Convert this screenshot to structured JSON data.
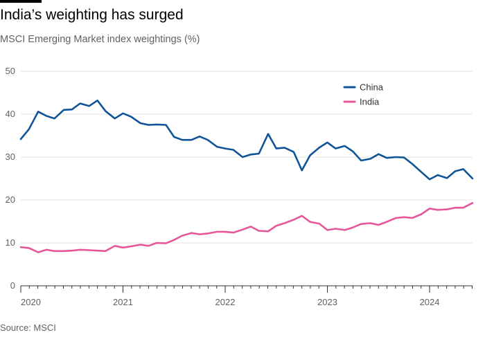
{
  "header": {
    "title": "India’s weighting has surged",
    "subtitle": "MSCI Emerging Market index weightings (%)"
  },
  "footer": {
    "source": "Source: MSCI"
  },
  "colors": {
    "china": "#0f5499",
    "india": "#e5569a",
    "grid": "#e6e3df",
    "axis": "#33302e"
  },
  "chart_data": {
    "type": "line",
    "title": "India’s weighting has surged",
    "subtitle": "MSCI Emerging Market index weightings (%)",
    "xlabel": "",
    "ylabel": "",
    "ylim": [
      0,
      50
    ],
    "xlim": [
      2020.0,
      2024.42
    ],
    "y_ticks": [
      0,
      10,
      20,
      30,
      40,
      50
    ],
    "x_ticks": [
      {
        "value": 2020,
        "label": "2020"
      },
      {
        "value": 2021,
        "label": "2021"
      },
      {
        "value": 2022,
        "label": "2022"
      },
      {
        "value": 2023,
        "label": "2023"
      },
      {
        "value": 2024,
        "label": "2024"
      }
    ],
    "grid": true,
    "legend": "top-right",
    "series": [
      {
        "name": "China",
        "color": "#0f5499",
        "points": [
          [
            2020.0,
            34.2
          ],
          [
            2020.08,
            36.5
          ],
          [
            2020.17,
            40.6
          ],
          [
            2020.25,
            39.6
          ],
          [
            2020.33,
            39.0
          ],
          [
            2020.42,
            41.0
          ],
          [
            2020.5,
            41.1
          ],
          [
            2020.58,
            42.5
          ],
          [
            2020.67,
            41.9
          ],
          [
            2020.75,
            43.2
          ],
          [
            2020.83,
            40.7
          ],
          [
            2020.92,
            39.0
          ],
          [
            2021.0,
            40.2
          ],
          [
            2021.08,
            39.4
          ],
          [
            2021.17,
            37.9
          ],
          [
            2021.25,
            37.5
          ],
          [
            2021.33,
            37.6
          ],
          [
            2021.42,
            37.5
          ],
          [
            2021.5,
            34.7
          ],
          [
            2021.58,
            34.0
          ],
          [
            2021.67,
            34.0
          ],
          [
            2021.75,
            34.8
          ],
          [
            2021.83,
            34.0
          ],
          [
            2021.92,
            32.4
          ],
          [
            2022.0,
            32.0
          ],
          [
            2022.08,
            31.7
          ],
          [
            2022.17,
            30.0
          ],
          [
            2022.25,
            30.6
          ],
          [
            2022.33,
            30.8
          ],
          [
            2022.42,
            35.4
          ],
          [
            2022.5,
            32.0
          ],
          [
            2022.58,
            32.2
          ],
          [
            2022.67,
            31.2
          ],
          [
            2022.75,
            26.9
          ],
          [
            2022.83,
            30.4
          ],
          [
            2022.92,
            32.2
          ],
          [
            2023.0,
            33.4
          ],
          [
            2023.08,
            32.0
          ],
          [
            2023.17,
            32.6
          ],
          [
            2023.25,
            31.3
          ],
          [
            2023.33,
            29.2
          ],
          [
            2023.42,
            29.6
          ],
          [
            2023.5,
            30.7
          ],
          [
            2023.58,
            29.8
          ],
          [
            2023.67,
            30.0
          ],
          [
            2023.75,
            29.9
          ],
          [
            2023.83,
            28.4
          ],
          [
            2023.92,
            26.5
          ],
          [
            2024.0,
            24.8
          ],
          [
            2024.08,
            25.8
          ],
          [
            2024.17,
            25.1
          ],
          [
            2024.25,
            26.7
          ],
          [
            2024.33,
            27.2
          ],
          [
            2024.42,
            25.0
          ]
        ]
      },
      {
        "name": "India",
        "color": "#e5569a",
        "points": [
          [
            2020.0,
            9.0
          ],
          [
            2020.08,
            8.8
          ],
          [
            2020.17,
            7.8
          ],
          [
            2020.25,
            8.4
          ],
          [
            2020.33,
            8.1
          ],
          [
            2020.42,
            8.1
          ],
          [
            2020.5,
            8.2
          ],
          [
            2020.58,
            8.4
          ],
          [
            2020.67,
            8.3
          ],
          [
            2020.75,
            8.2
          ],
          [
            2020.83,
            8.1
          ],
          [
            2020.92,
            9.3
          ],
          [
            2021.0,
            8.9
          ],
          [
            2021.08,
            9.2
          ],
          [
            2021.17,
            9.6
          ],
          [
            2021.25,
            9.3
          ],
          [
            2021.33,
            10.0
          ],
          [
            2021.42,
            9.9
          ],
          [
            2021.5,
            10.7
          ],
          [
            2021.58,
            11.7
          ],
          [
            2021.67,
            12.3
          ],
          [
            2021.75,
            12.0
          ],
          [
            2021.83,
            12.2
          ],
          [
            2021.92,
            12.6
          ],
          [
            2022.0,
            12.6
          ],
          [
            2022.08,
            12.4
          ],
          [
            2022.17,
            13.1
          ],
          [
            2022.25,
            13.8
          ],
          [
            2022.33,
            12.8
          ],
          [
            2022.42,
            12.7
          ],
          [
            2022.5,
            14.0
          ],
          [
            2022.58,
            14.6
          ],
          [
            2022.67,
            15.4
          ],
          [
            2022.75,
            16.3
          ],
          [
            2022.83,
            14.9
          ],
          [
            2022.92,
            14.5
          ],
          [
            2023.0,
            13.0
          ],
          [
            2023.08,
            13.3
          ],
          [
            2023.17,
            13.0
          ],
          [
            2023.25,
            13.6
          ],
          [
            2023.33,
            14.4
          ],
          [
            2023.42,
            14.6
          ],
          [
            2023.5,
            14.2
          ],
          [
            2023.58,
            14.9
          ],
          [
            2023.67,
            15.8
          ],
          [
            2023.75,
            16.0
          ],
          [
            2023.83,
            15.8
          ],
          [
            2023.92,
            16.7
          ],
          [
            2024.0,
            18.0
          ],
          [
            2024.08,
            17.7
          ],
          [
            2024.17,
            17.8
          ],
          [
            2024.25,
            18.2
          ],
          [
            2024.33,
            18.2
          ],
          [
            2024.42,
            19.3
          ]
        ]
      }
    ]
  }
}
